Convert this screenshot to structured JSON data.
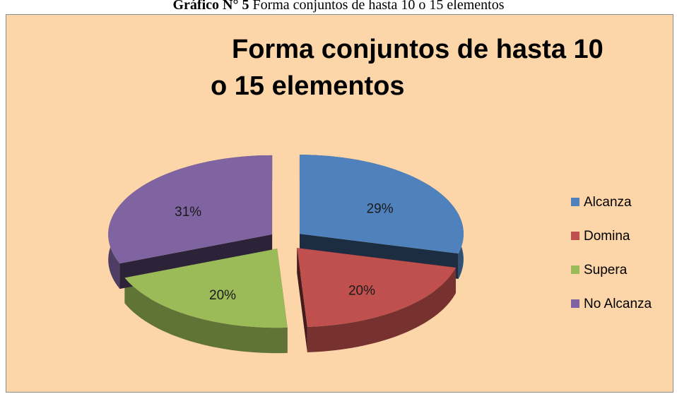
{
  "chart_data": {
    "type": "pie",
    "caption_label": "Gráfico N° 5",
    "caption": "Forma conjuntos de hasta 10 o 15 elementos",
    "title": "Forma conjuntos de hasta 10 o 15 elementos",
    "categories": [
      "Alcanza",
      "Domina",
      "Supera",
      "No Alcanza"
    ],
    "values": [
      29,
      20,
      20,
      31
    ],
    "value_labels": [
      "29%",
      "20%",
      "20%",
      "31%"
    ],
    "colors": [
      "#4f81bd",
      "#c0504d",
      "#9bbb59",
      "#8064a2"
    ],
    "legend": "right"
  }
}
